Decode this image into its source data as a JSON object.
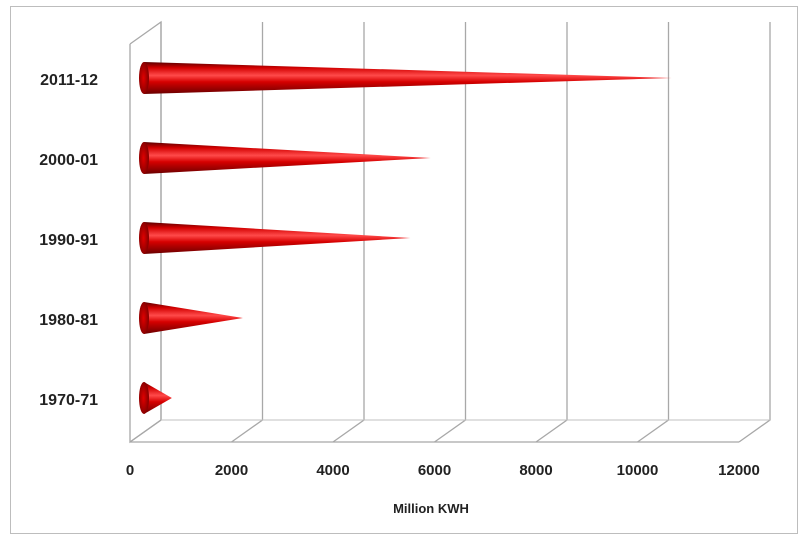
{
  "chart_data": {
    "type": "bar",
    "bar_shape": "3d-cone",
    "orientation": "horizontal",
    "categories": [
      "2011-12",
      "2000-01",
      "1990-91",
      "1980-81",
      "1970-71"
    ],
    "values": [
      10400,
      5650,
      5250,
      1950,
      550
    ],
    "xlabel": "Million KWH",
    "ylabel": "",
    "xlim": [
      0,
      12000
    ],
    "x_ticks": [
      "0",
      "2000",
      "4000",
      "6000",
      "8000",
      "10000",
      "12000"
    ],
    "grid": "vertical",
    "legend": "none",
    "bar_color": "#c4000a"
  }
}
